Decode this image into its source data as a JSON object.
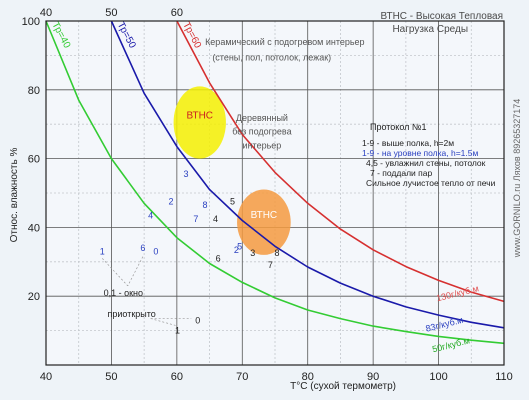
{
  "chart_data": {
    "type": "line",
    "title": "ВТНС - Высокая  Тепловая\nНагрузка Среды",
    "xlabel": "T°C (сухой термометр)",
    "ylabel": "Относ. влажность %",
    "xlim": [
      40,
      110
    ],
    "ylim": [
      0,
      100
    ],
    "x_ticks": [
      40,
      50,
      60,
      70,
      80,
      90,
      100,
      110
    ],
    "y_ticks": [
      20,
      40,
      60,
      80,
      100
    ],
    "top_ticks": [
      40,
      50,
      60
    ],
    "grid": true,
    "series": [
      {
        "name": "Тр=40",
        "color": "#33cc33",
        "x": [
          40,
          45,
          50,
          55,
          60,
          65,
          70,
          75,
          80,
          85,
          90,
          95,
          100,
          105,
          110
        ],
        "y": [
          100,
          77,
          60,
          47,
          37,
          29.5,
          24,
          19.5,
          16,
          13.5,
          11.3,
          9.7,
          8.3,
          7.2,
          6.3
        ]
      },
      {
        "name": "Тр=50",
        "color": "#1a1aaa",
        "x": [
          50,
          55,
          60,
          65,
          70,
          75,
          80,
          85,
          90,
          95,
          100,
          105,
          110
        ],
        "y": [
          100,
          79,
          63.5,
          51,
          42,
          34.5,
          28.5,
          23.8,
          20,
          16.9,
          14.5,
          12.4,
          10.8
        ]
      },
      {
        "name": "Тр=60",
        "color": "#d63030",
        "x": [
          60,
          65,
          70,
          75,
          80,
          85,
          90,
          95,
          100,
          105,
          110
        ],
        "y": [
          100,
          82,
          67,
          56,
          47,
          39.5,
          33.5,
          28.6,
          24.6,
          21.2,
          18.5
        ]
      }
    ],
    "curve_labels": [
      {
        "text": "130г/куб.м",
        "x": 103,
        "y": 20,
        "color": "#e05050"
      },
      {
        "text": "83г/куб.м",
        "x": 101,
        "y": 11,
        "color": "#2a40c0"
      },
      {
        "text": "50г/куб.м",
        "x": 102,
        "y": 5,
        "color": "#22aa22"
      }
    ],
    "zones": [
      {
        "label": "ВТНС",
        "cx": 63.5,
        "cy": 70.5,
        "rx": 4,
        "ry": 10.5,
        "fill": "#f5f000",
        "text_color": "#cc2020"
      },
      {
        "label": "ВТНС",
        "cx": 73.3,
        "cy": 41.5,
        "rx": 4.1,
        "ry": 9.5,
        "fill": "#f59a40",
        "text_color": "#ffffff"
      }
    ],
    "zone_captions": [
      {
        "text": "Керамический с подогревом интерьер",
        "x": 76.5,
        "y": 93,
        "color": "#555555"
      },
      {
        "text": "(стены, пол, потолок, лежак)",
        "x": 74.5,
        "y": 88.5,
        "color": "#555555"
      },
      {
        "text": "Деревянный",
        "x": 73,
        "y": 71,
        "color": "#555555"
      },
      {
        "text": "без подогрева",
        "x": 73,
        "y": 67,
        "color": "#555555"
      },
      {
        "text": "интерьер",
        "x": 73,
        "y": 63,
        "color": "#555555"
      }
    ],
    "points": [
      {
        "label": "1",
        "x": 48.6,
        "y": 33,
        "color": "#2a40c0"
      },
      {
        "label": "6",
        "x": 54.8,
        "y": 34,
        "color": "#2a40c0"
      },
      {
        "label": "0",
        "x": 56.8,
        "y": 33,
        "color": "#2a40c0"
      },
      {
        "label": "4",
        "x": 56,
        "y": 43.5,
        "color": "#2a40c0"
      },
      {
        "label": "2",
        "x": 59.1,
        "y": 47.5,
        "color": "#2a40c0"
      },
      {
        "label": "3",
        "x": 61.4,
        "y": 55.5,
        "color": "#2a40c0"
      },
      {
        "label": "8",
        "x": 64.3,
        "y": 46.5,
        "color": "#2a40c0"
      },
      {
        "label": "7",
        "x": 62.9,
        "y": 42.5,
        "color": "#2a40c0"
      },
      {
        "label": "4",
        "x": 65.9,
        "y": 42.5,
        "color": "#222222"
      },
      {
        "label": "5",
        "x": 68.5,
        "y": 47.5,
        "color": "#222222"
      },
      {
        "label": "5",
        "x": 69.6,
        "y": 34.5,
        "color": "#2a40c0"
      },
      {
        "label": "2",
        "x": 69.1,
        "y": 33.5,
        "color": "#2a40c0"
      },
      {
        "label": "6",
        "x": 66.3,
        "y": 31,
        "color": "#222222"
      },
      {
        "label": "3",
        "x": 71.6,
        "y": 32.5,
        "color": "#222222"
      },
      {
        "label": "8",
        "x": 75.3,
        "y": 32.5,
        "color": "#222222"
      },
      {
        "label": "7",
        "x": 74.3,
        "y": 29,
        "color": "#222222"
      },
      {
        "label": "0",
        "x": 63.2,
        "y": 13,
        "color": "#222222"
      },
      {
        "label": "1",
        "x": 60.1,
        "y": 10,
        "color": "#222222"
      }
    ],
    "annotations": [
      {
        "text": "0,1 - окно",
        "x": 48.8,
        "y": 20,
        "color": "#222222"
      },
      {
        "text": "приоткрыто",
        "x": 49.4,
        "y": 14,
        "color": "#222222"
      }
    ],
    "protocol": {
      "title": "Протокол №1",
      "lines": [
        {
          "text": "1-9 - выше полка, h=2м",
          "color": "#222222"
        },
        {
          "text": "1-9 - на уровне полка, h=1.5м",
          "color": "#2a40c0"
        },
        {
          "text": "4,5 - увлажнил стены, потолок",
          "color": "#222222"
        },
        {
          "text": "7 - поддали пар",
          "color": "#222222"
        },
        {
          "text": "Сильное лучистое тепло от печи",
          "color": "#222222"
        }
      ]
    },
    "watermark": "www.GORNILO.ru Ляхов 89265327174"
  }
}
